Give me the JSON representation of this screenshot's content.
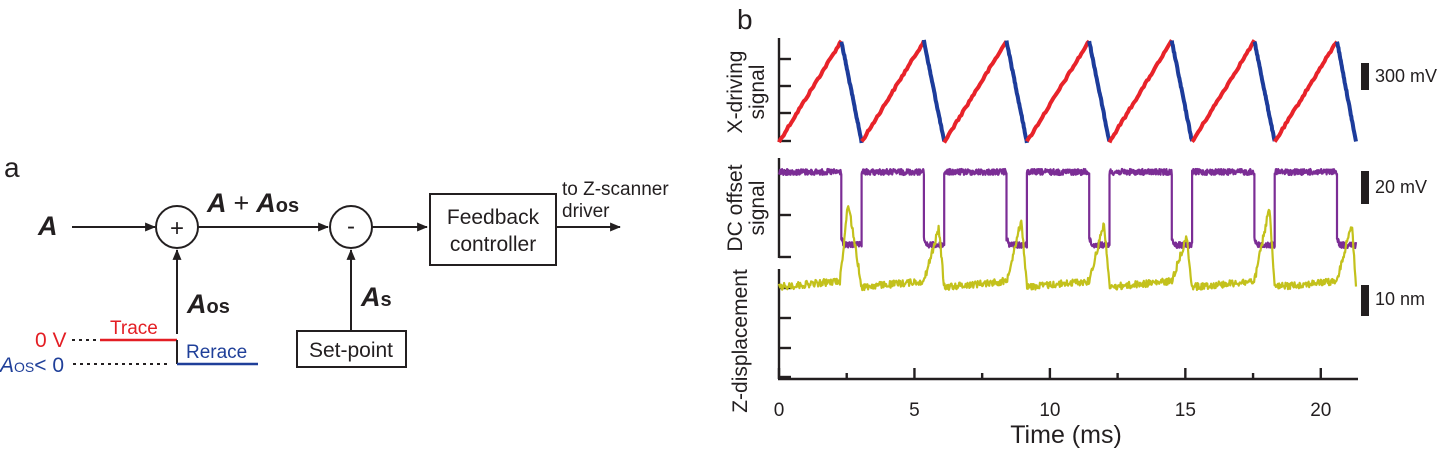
{
  "panel_a": {
    "label": "a",
    "input_symbol": "A",
    "sum_symbol": "+",
    "sum_output_a": "A",
    "sum_output_plus": "+",
    "sum_output_aos_main": "A",
    "sum_output_aos_sub": "os",
    "diff_symbol": "-",
    "offset_main": "A",
    "offset_sub": "os",
    "setpoint_main": "A",
    "setpoint_sub": "s",
    "feedback_line1": "Feedback",
    "feedback_line2": "controller",
    "output_line1": "to Z-scanner",
    "output_line2": "driver",
    "setpoint_box": "Set-point",
    "zero_volt": "0 V",
    "neg_main": "A",
    "neg_sub": "OS",
    "neg_rest": "< 0",
    "trace": "Trace",
    "retrace": "Rerace",
    "colors": {
      "trace": "#e31e24",
      "retrace": "#1f3f99"
    }
  },
  "panel_b": {
    "label": "b",
    "x_axis_label": "Time (ms)",
    "x_ticks": [
      "0",
      "5",
      "10",
      "15",
      "20"
    ],
    "xlim": [
      0,
      21.3
    ],
    "rows": [
      {
        "id": "x-driving",
        "ylabel1": "X-driving",
        "ylabel2": "signal",
        "scale": "300 mV",
        "colors": {
          "trace": "#e8232a",
          "retrace": "#1d3c9b"
        }
      },
      {
        "id": "dc-offset",
        "ylabel1": "DC offset",
        "ylabel2": "signal",
        "scale": "20 mV",
        "color": "#7b2d95"
      },
      {
        "id": "z-displacement",
        "ylabel1": "Z-displacement",
        "scale": "10 nm",
        "color": "#c3c11c"
      }
    ]
  },
  "chart_data": {
    "type": "line",
    "title": "",
    "xlabel": "Time (ms)",
    "x_ticks": [
      0,
      5,
      10,
      15,
      20
    ],
    "xlim": [
      0,
      21.3
    ],
    "line_period_ms": 3.05,
    "trace_duration_ms": 2.3,
    "retrace_duration_ms": 0.75,
    "series": [
      {
        "name": "X-driving signal",
        "unit": "mV",
        "scale_bar": "300 mV",
        "x": [
          0,
          2.3,
          3.05,
          5.35,
          6.1,
          8.4,
          9.15,
          11.45,
          12.2,
          14.5,
          15.25,
          17.55,
          18.3,
          20.6,
          21.3
        ],
        "values": [
          0,
          850,
          0,
          850,
          0,
          850,
          0,
          850,
          0,
          850,
          0,
          850,
          0,
          850,
          0
        ]
      },
      {
        "name": "DC offset signal",
        "unit": "mV",
        "scale_bar": "20 mV",
        "x": [
          0,
          2.3,
          2.3,
          3.05,
          3.05,
          5.35,
          5.35,
          6.1,
          6.1,
          8.4,
          8.4,
          9.15,
          9.15,
          11.45,
          11.45,
          12.2,
          12.2,
          14.5,
          14.5,
          15.25,
          15.25,
          17.55,
          17.55,
          18.3,
          18.3,
          20.6,
          20.6,
          21.3
        ],
        "values": [
          0,
          0,
          -43,
          -43,
          0,
          0,
          -43,
          -43,
          0,
          0,
          -43,
          -43,
          0,
          0,
          -43,
          -43,
          0,
          0,
          -43,
          -43,
          0,
          0,
          -43,
          -43,
          0,
          0,
          -43,
          -43
        ]
      },
      {
        "name": "Z-displacement",
        "unit": "nm",
        "scale_bar": "10 nm",
        "x": [
          0,
          2.25,
          2.55,
          3.05,
          5.35,
          5.9,
          6.1,
          8.4,
          8.95,
          9.15,
          11.45,
          12.0,
          12.2,
          14.5,
          15.05,
          15.25,
          17.55,
          18.1,
          18.3,
          20.6,
          21.15,
          21.3
        ],
        "values": [
          0,
          -2,
          -29,
          0,
          -2,
          -20,
          0,
          -2,
          -23,
          0,
          -2,
          -22,
          0,
          -2,
          -17,
          0,
          -2,
          -27,
          0,
          -2,
          -22,
          0
        ]
      }
    ]
  }
}
